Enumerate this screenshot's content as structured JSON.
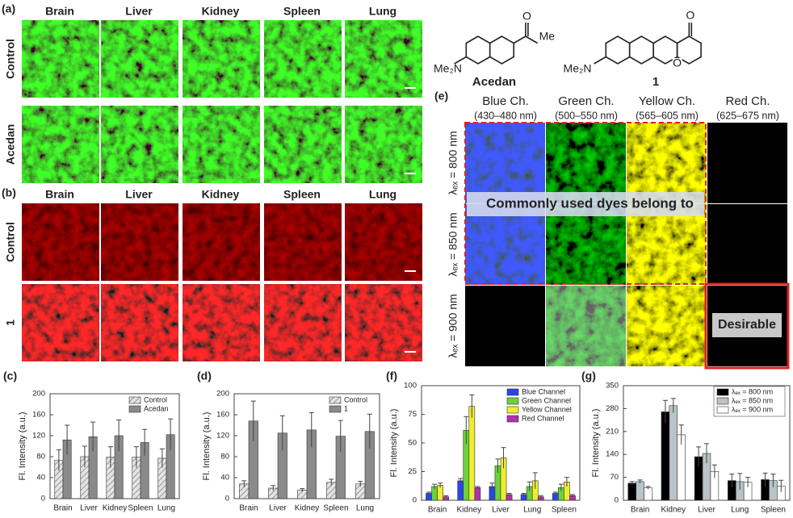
{
  "panels_ab": {
    "label_a": "(a)",
    "label_b": "(b)",
    "columns_a": [
      "Brain",
      "Liver",
      "Kidney",
      "Spleen",
      "Lung"
    ],
    "columns_b": [
      "Brain",
      "Liver",
      "Kidney",
      "Spleen",
      "Lung"
    ],
    "rows_a": [
      "Control",
      "Acedan"
    ],
    "rows_b": [
      "Control",
      "1"
    ]
  },
  "structures": {
    "acedan": {
      "name": "Acedan",
      "amine": "Me₂N",
      "methyl": "Me",
      "oxygen": "O"
    },
    "compound": {
      "name": "1",
      "amine": "Me₂N",
      "ketone": "O",
      "ring_oxygen": "O"
    }
  },
  "panel_e": {
    "label": "(e)",
    "channels": [
      {
        "name": "Blue Ch.",
        "range": "(430–480 nm)"
      },
      {
        "name": "Green Ch.",
        "range": "(500–550 nm)"
      },
      {
        "name": "Yellow Ch.",
        "range": "(565–605 nm)"
      },
      {
        "name": "Red Ch.",
        "range": "(625–675 nm)"
      }
    ],
    "rows": [
      "λₑₓ = 800 nm",
      "λₑₓ = 850 nm",
      "λₑₓ = 900 nm"
    ],
    "banner": "Commonly used dyes belong to",
    "highlight": "Desirable"
  },
  "chart_data": [
    {
      "type": "bar",
      "label": "(c)",
      "y_label": "Fl. Intensity (a.u.)",
      "categories": [
        "Brain",
        "Liver",
        "Kidney",
        "Spleen",
        "Lung"
      ],
      "series": [
        {
          "name": "Control",
          "color": "#e4e4e4",
          "hatch": true,
          "values": [
            73,
            80,
            79,
            79,
            77
          ],
          "errors": [
            20,
            20,
            20,
            20,
            18
          ]
        },
        {
          "name": "Acedan",
          "color": "#8a8a8a",
          "values": [
            112,
            118,
            120,
            107,
            122
          ],
          "errors": [
            28,
            28,
            30,
            25,
            30
          ]
        }
      ],
      "ylim": [
        0,
        200
      ],
      "yticks": [
        0,
        40,
        80,
        120,
        160,
        200
      ],
      "legend": "upper right"
    },
    {
      "type": "bar",
      "label": "(d)",
      "y_label": "Fl. Intensity (a.u.)",
      "categories": [
        "Brain",
        "Liver",
        "Kidney",
        "Spleen",
        "Lung"
      ],
      "series": [
        {
          "name": "Control",
          "color": "#e4e4e4",
          "hatch": true,
          "values": [
            28,
            20,
            16,
            31,
            28
          ],
          "errors": [
            6,
            5,
            3,
            6,
            5
          ]
        },
        {
          "name": "1",
          "color": "#8a8a8a",
          "values": [
            148,
            125,
            131,
            119,
            128
          ],
          "errors": [
            38,
            33,
            33,
            30,
            33
          ]
        }
      ],
      "ylim": [
        0,
        200
      ],
      "yticks": [
        0,
        40,
        80,
        120,
        160,
        200
      ],
      "legend": "upper right"
    },
    {
      "type": "bar",
      "label": "(f)",
      "y_label": "Fl. Intensity (a.u.)",
      "categories": [
        "Brain",
        "Kidney",
        "Liver",
        "Lung",
        "Spleen"
      ],
      "series": [
        {
          "name": "Blue Channel",
          "color": "#2846e8",
          "values": [
            6,
            17,
            12,
            5,
            6
          ],
          "errors": [
            1,
            2,
            3,
            1,
            1
          ]
        },
        {
          "name": "Green Channel",
          "color": "#6bd23a",
          "values": [
            12,
            61,
            30,
            12,
            11
          ],
          "errors": [
            2,
            12,
            6,
            4,
            3
          ]
        },
        {
          "name": "Yellow Channel",
          "color": "#eeee30",
          "values": [
            13,
            82,
            37,
            17,
            16
          ],
          "errors": [
            2,
            10,
            9,
            7,
            4
          ]
        },
        {
          "name": "Red Channel",
          "color": "#b030b0",
          "values": [
            3,
            11,
            5,
            3,
            4
          ],
          "errors": [
            1,
            1,
            1,
            1,
            1
          ]
        }
      ],
      "ylim": [
        0,
        100
      ],
      "yticks": [
        0,
        25,
        50,
        75,
        100
      ],
      "legend": "upper right"
    },
    {
      "type": "bar",
      "label": "(g)",
      "y_label": "Fl. Intensity (a.u.)",
      "categories": [
        "Brain",
        "Kidney",
        "Liver",
        "Lung",
        "Spleen"
      ],
      "series": [
        {
          "name": "λₑₓ = 800 nm",
          "color": "#000000",
          "values": [
            52,
            270,
            133,
            60,
            63
          ],
          "errors": [
            5,
            35,
            30,
            20,
            20
          ]
        },
        {
          "name": "λₑₓ = 850 nm",
          "color": "#b8c4c8",
          "values": [
            57,
            289,
            143,
            57,
            60
          ],
          "errors": [
            5,
            22,
            30,
            25,
            20
          ]
        },
        {
          "name": "λₑₓ = 900 nm",
          "color": "#ffffff",
          "values": [
            38,
            200,
            88,
            55,
            43
          ],
          "errors": [
            4,
            30,
            20,
            15,
            18
          ]
        }
      ],
      "ylim": [
        0,
        350
      ],
      "yticks": [
        0,
        70,
        140,
        210,
        280,
        350
      ],
      "legend": "upper right",
      "legend_frame": true
    }
  ]
}
